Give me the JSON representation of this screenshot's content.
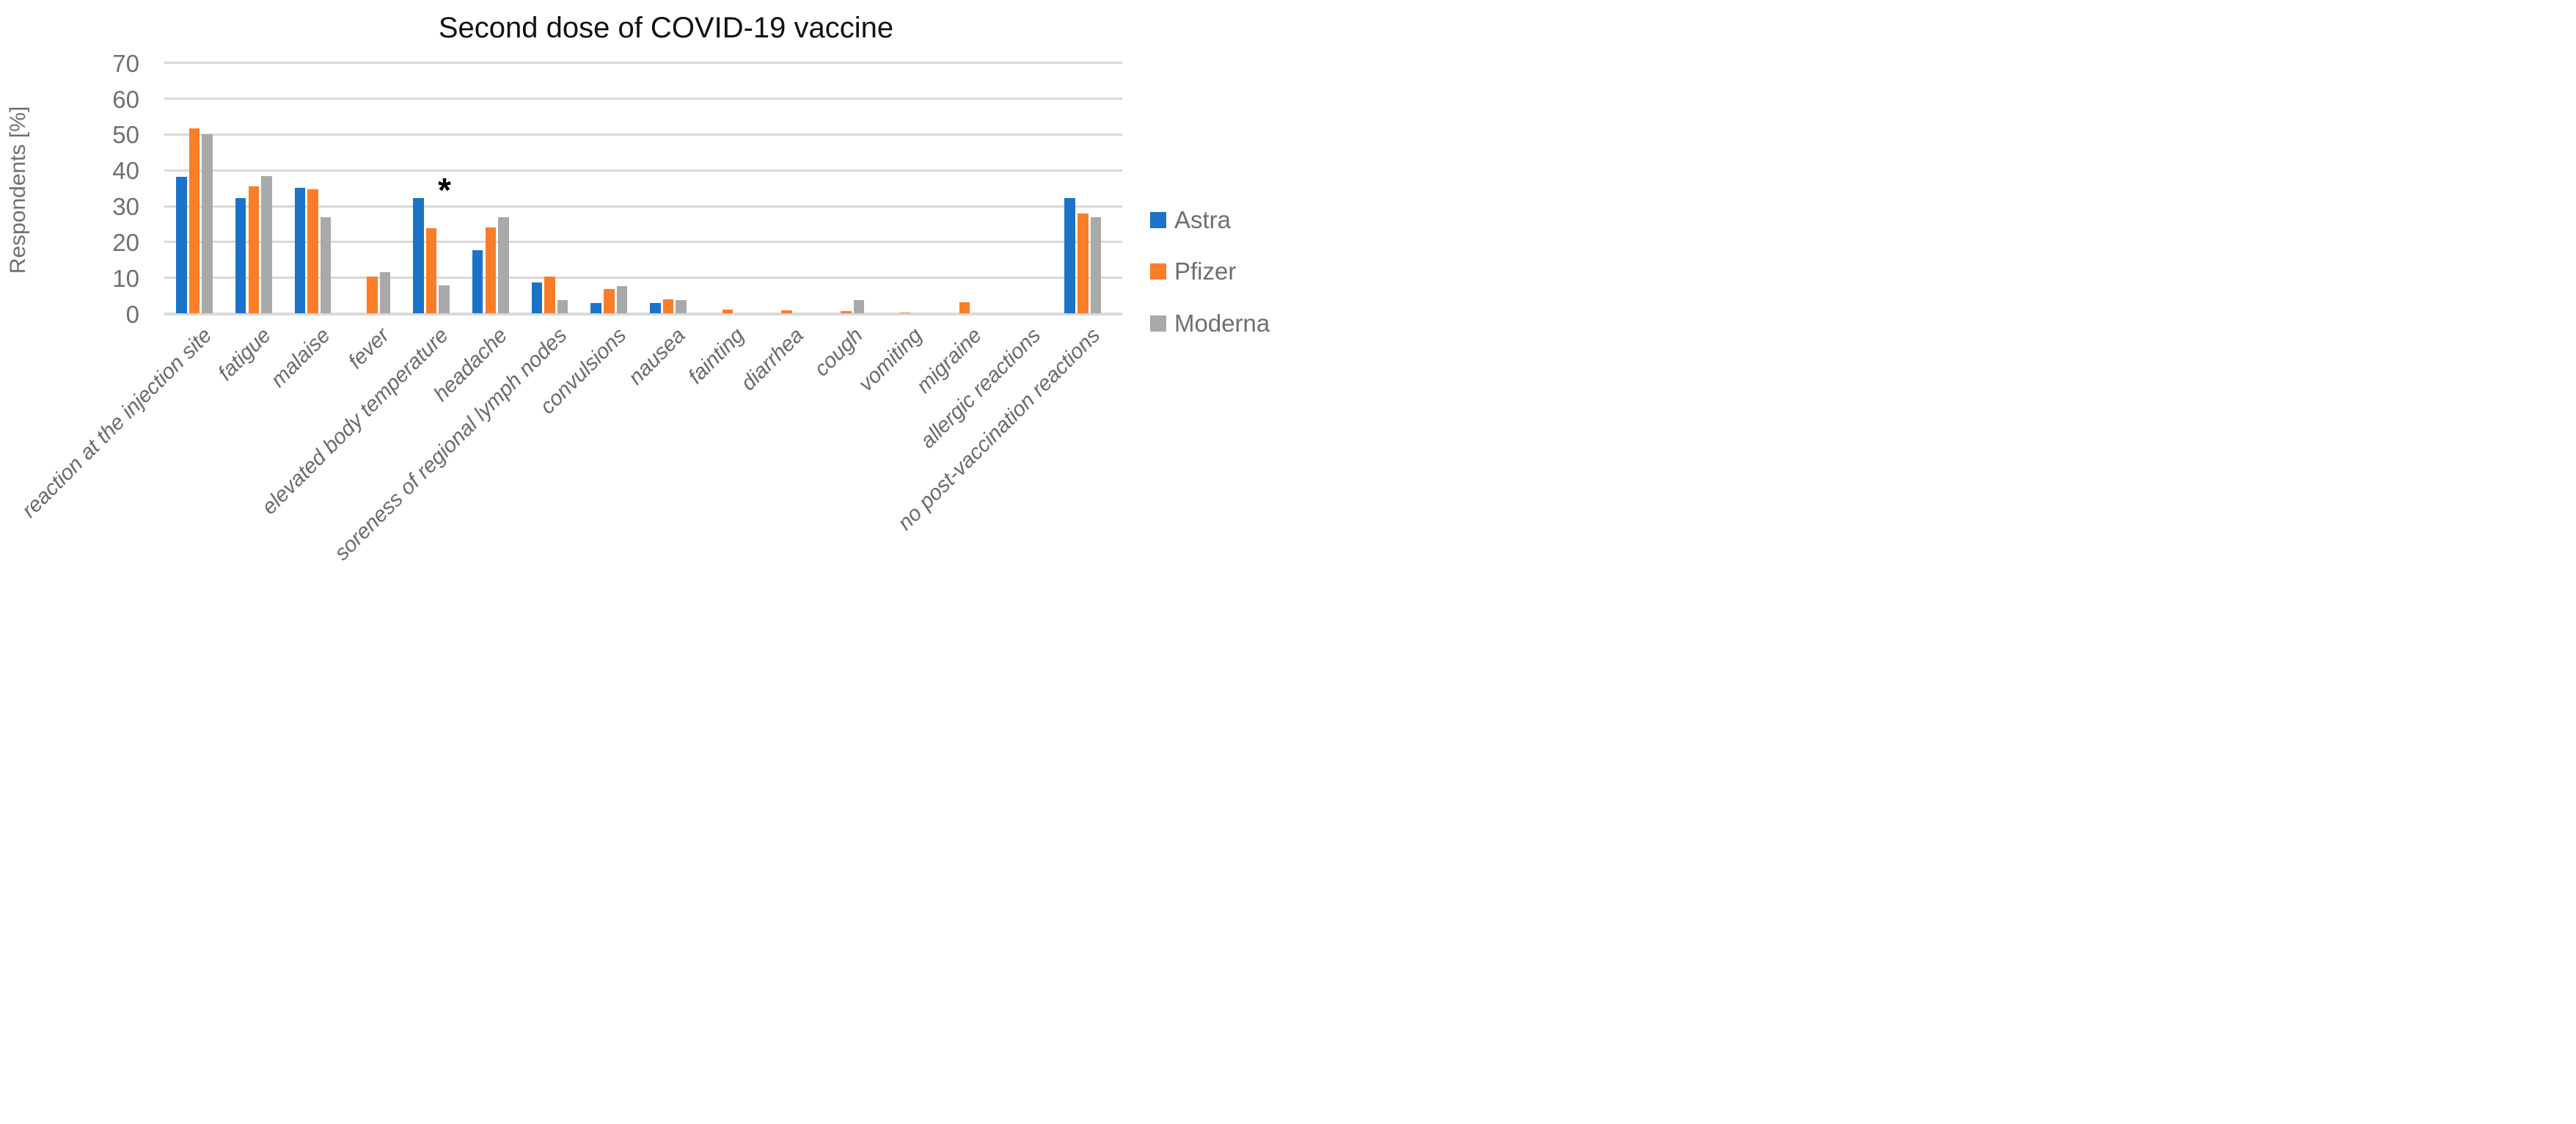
{
  "title": "Second dose of COVID-19 vaccine",
  "y_axis": {
    "label": "Respondents [%]",
    "ticks": [
      0,
      10,
      20,
      30,
      40,
      50,
      60,
      70
    ]
  },
  "legend": {
    "position": "right",
    "items": [
      "Astra",
      "Pfizer",
      "Moderna"
    ]
  },
  "colors": {
    "astra_blue": "#1b73c8",
    "pfizer_orange": "#fb7d27",
    "moderna_gray": "#a9a9a9",
    "gridline": "#d9d9d9",
    "axis_text": "#6f6f6f",
    "title_text": "#111111"
  },
  "annotation": {
    "symbol": "*",
    "category": "elevated body temperature"
  },
  "chart_data": {
    "type": "bar",
    "title": "Second dose of COVID-19 vaccine",
    "xlabel": "",
    "ylabel": "Respondents [%]",
    "ylim": [
      0,
      70
    ],
    "ytick_step": 10,
    "grid": true,
    "legend_position": "right",
    "categories": [
      "reaction at the injection site",
      "fatigue",
      "malaise",
      "fever",
      "elevated body temperature",
      "headache",
      "soreness of regional lymph nodes",
      "convulsions",
      "nausea",
      "fainting",
      "diarrhea",
      "cough",
      "vomiting",
      "migraine",
      "allergic reactions",
      "no post-vaccination reactions"
    ],
    "series": [
      {
        "name": "Astra",
        "color": "#1b73c8",
        "values": [
          38.3,
          32.3,
          35.2,
          0,
          32.2,
          17.7,
          8.8,
          2.9,
          2.9,
          0,
          0,
          0,
          0,
          0,
          0,
          32.3
        ]
      },
      {
        "name": "Pfizer",
        "color": "#fb7d27",
        "values": [
          51.7,
          35.5,
          34.7,
          10.4,
          23.8,
          24.0,
          10.4,
          6.8,
          3.9,
          1.2,
          1.0,
          0.8,
          0.3,
          3.1,
          0,
          27.9
        ]
      },
      {
        "name": "Moderna",
        "color": "#a9a9a9",
        "values": [
          50.0,
          38.5,
          27.0,
          11.5,
          7.8,
          26.9,
          3.8,
          7.7,
          3.8,
          0,
          0,
          3.8,
          0,
          0,
          0,
          26.9
        ]
      }
    ],
    "annotations": [
      {
        "text": "*",
        "category_index": 4,
        "meaning": "significance marker above elevated body temperature group"
      }
    ]
  }
}
